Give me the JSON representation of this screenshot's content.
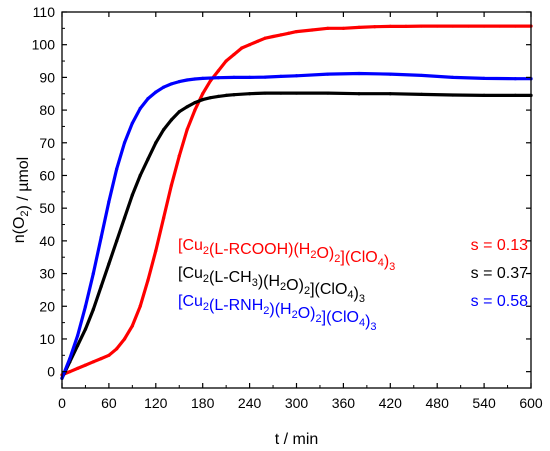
{
  "chart_data": {
    "type": "scatter",
    "xlabel": "t / min",
    "ylabel_parts": [
      {
        "text": "n(O",
        "sub": false
      },
      {
        "text": "2",
        "sub": true
      },
      {
        "text": ") / µmol",
        "sub": false
      }
    ],
    "xlim": [
      0,
      600
    ],
    "ylim": [
      -5,
      110
    ],
    "x_ticks": [
      0,
      60,
      120,
      180,
      240,
      300,
      360,
      420,
      480,
      540,
      600
    ],
    "y_ticks": [
      0,
      10,
      20,
      30,
      40,
      50,
      60,
      70,
      80,
      90,
      100,
      110
    ],
    "grid": false,
    "legend_position": "center-right",
    "series": [
      {
        "color": "#ff0000",
        "label_parts": [
          {
            "text": "[Cu",
            "sub": false
          },
          {
            "text": "2",
            "sub": true
          },
          {
            "text": "(L-RCOOH)(H",
            "sub": false
          },
          {
            "text": "2",
            "sub": true
          },
          {
            "text": "O)",
            "sub": false
          },
          {
            "text": "2",
            "sub": true
          },
          {
            "text": "](ClO",
            "sub": false
          },
          {
            "text": "4",
            "sub": true
          },
          {
            "text": ")",
            "sub": false
          },
          {
            "text": "3",
            "sub": true
          }
        ],
        "s_label": "s = 0.13",
        "x": [
          0,
          10,
          20,
          30,
          40,
          50,
          60,
          70,
          80,
          90,
          100,
          110,
          120,
          130,
          140,
          150,
          160,
          170,
          180,
          190,
          200,
          210,
          220,
          230,
          240,
          250,
          260,
          270,
          280,
          290,
          300,
          320,
          340,
          360,
          380,
          400,
          420,
          440,
          460,
          480,
          500,
          520,
          540,
          560,
          580,
          600
        ],
        "y": [
          -1,
          0,
          1,
          2,
          3,
          4,
          5,
          7,
          10,
          14,
          20,
          28,
          37,
          47,
          57,
          66,
          74,
          80,
          85,
          89,
          92,
          95,
          97,
          99,
          100,
          101,
          102,
          102.5,
          103,
          103.5,
          104,
          104.5,
          105,
          105,
          105.3,
          105.5,
          105.6,
          105.6,
          105.7,
          105.7,
          105.7,
          105.7,
          105.7,
          105.7,
          105.7,
          105.7
        ]
      },
      {
        "color": "#000000",
        "label_parts": [
          {
            "text": "[Cu",
            "sub": false
          },
          {
            "text": "2",
            "sub": true
          },
          {
            "text": "(L-CH",
            "sub": false
          },
          {
            "text": "3",
            "sub": true
          },
          {
            "text": ")(H",
            "sub": false
          },
          {
            "text": "2",
            "sub": true
          },
          {
            "text": "O)",
            "sub": false
          },
          {
            "text": "2",
            "sub": true
          },
          {
            "text": "](ClO",
            "sub": false
          },
          {
            "text": "4",
            "sub": true
          },
          {
            "text": ")",
            "sub": false
          },
          {
            "text": "3",
            "sub": true
          }
        ],
        "s_label": "s = 0.37",
        "x": [
          0,
          10,
          20,
          30,
          40,
          50,
          60,
          70,
          80,
          90,
          100,
          110,
          120,
          130,
          140,
          150,
          160,
          170,
          180,
          190,
          200,
          210,
          220,
          240,
          260,
          280,
          300,
          340,
          380,
          420,
          460,
          500,
          540,
          580,
          600
        ],
        "y": [
          -2,
          3,
          8,
          13,
          19,
          26,
          33,
          40,
          47,
          54,
          60,
          65,
          70,
          74,
          77,
          79.5,
          81,
          82.3,
          83.2,
          83.8,
          84.2,
          84.5,
          84.7,
          85,
          85.2,
          85.2,
          85.2,
          85.2,
          85,
          85,
          84.8,
          84.6,
          84.5,
          84.5,
          84.5
        ]
      },
      {
        "color": "#0000ff",
        "label_parts": [
          {
            "text": "[Cu",
            "sub": false
          },
          {
            "text": "2",
            "sub": true
          },
          {
            "text": "(L-RNH",
            "sub": false
          },
          {
            "text": "2",
            "sub": true
          },
          {
            "text": ")(H",
            "sub": false
          },
          {
            "text": "2",
            "sub": true
          },
          {
            "text": "O)",
            "sub": false
          },
          {
            "text": "2",
            "sub": true
          },
          {
            "text": "](ClO",
            "sub": false
          },
          {
            "text": "4",
            "sub": true
          },
          {
            "text": ")",
            "sub": false
          },
          {
            "text": "3",
            "sub": true
          }
        ],
        "s_label": "s = 0.58",
        "x": [
          0,
          10,
          20,
          30,
          40,
          50,
          60,
          70,
          80,
          90,
          100,
          110,
          120,
          130,
          140,
          150,
          160,
          170,
          180,
          200,
          220,
          240,
          260,
          280,
          300,
          340,
          380,
          420,
          460,
          500,
          540,
          580,
          600
        ],
        "y": [
          -2,
          4,
          11,
          20,
          30,
          41,
          52,
          62,
          70,
          76,
          80.5,
          83.5,
          85.5,
          87,
          88,
          88.7,
          89.2,
          89.5,
          89.7,
          89.9,
          90,
          90,
          90.1,
          90.3,
          90.5,
          91,
          91.2,
          91,
          90.6,
          90,
          89.7,
          89.6,
          89.6
        ]
      }
    ]
  }
}
